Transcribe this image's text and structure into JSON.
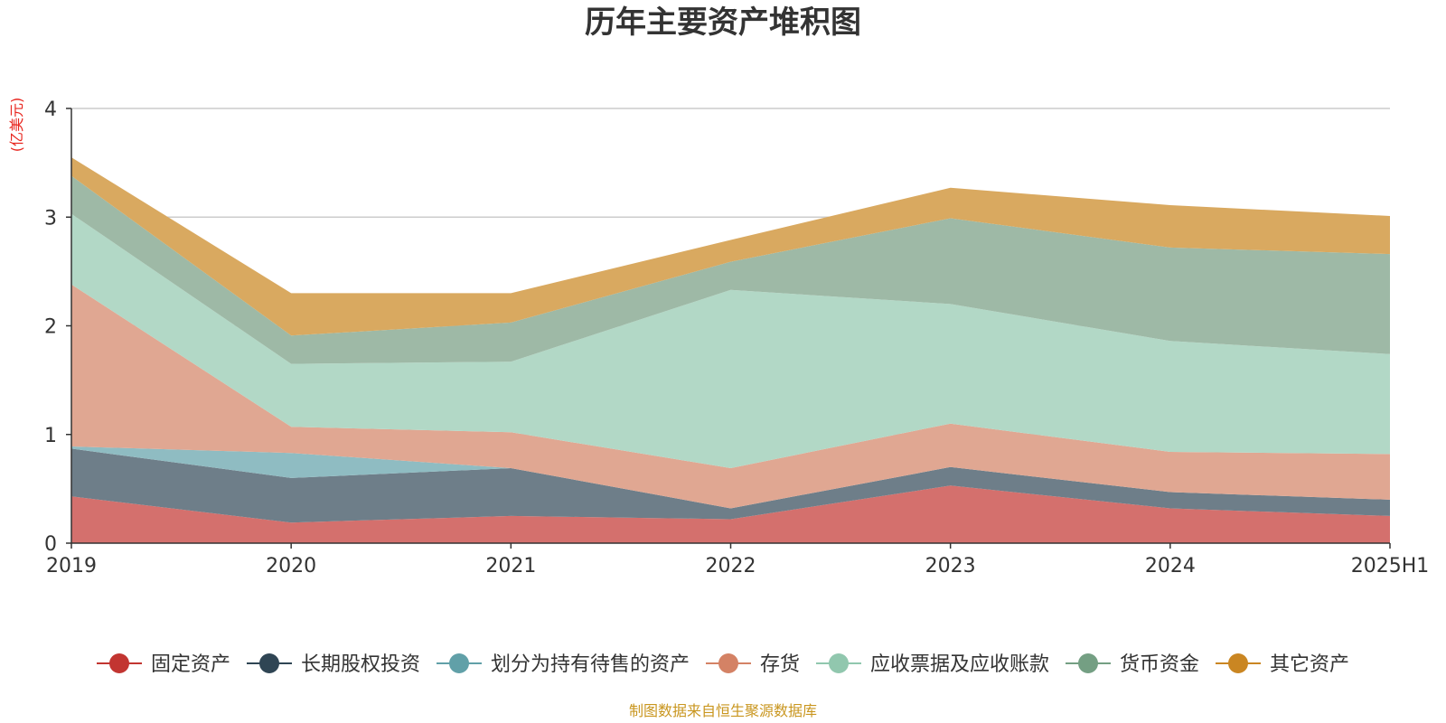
{
  "chart_data": {
    "type": "area",
    "stacked": true,
    "title": "历年主要资产堆积图",
    "ylabel": "(亿美元)",
    "xlabel": "",
    "ylim": [
      0,
      4
    ],
    "yticks": [
      0,
      1,
      2,
      3,
      4
    ],
    "grid": true,
    "legend_position": "bottom",
    "categories": [
      "2019",
      "2020",
      "2021",
      "2022",
      "2023",
      "2024",
      "2025H1"
    ],
    "series": [
      {
        "name": "固定资产",
        "color": "#c23531",
        "area_color": "#d4706d",
        "values": [
          0.43,
          0.19,
          0.25,
          0.22,
          0.53,
          0.32,
          0.25
        ]
      },
      {
        "name": "长期股权投资",
        "color": "#2f4554",
        "area_color": "#6e7e89",
        "values": [
          0.44,
          0.41,
          0.44,
          0.1,
          0.17,
          0.15,
          0.15
        ]
      },
      {
        "name": "划分为持有待售的资产",
        "color": "#61a0a8",
        "area_color": "#8fbcc2",
        "values": [
          0.02,
          0.23,
          0.0,
          0.0,
          0.0,
          0.0,
          0.0
        ]
      },
      {
        "name": "存货",
        "color": "#d48265",
        "area_color": "#e0a792",
        "values": [
          1.49,
          0.24,
          0.33,
          0.37,
          0.4,
          0.37,
          0.42
        ]
      },
      {
        "name": "应收票据及应收账款",
        "color": "#91c7ae",
        "area_color": "#b2d8c6",
        "values": [
          0.65,
          0.58,
          0.65,
          1.64,
          1.1,
          1.02,
          0.92
        ]
      },
      {
        "name": "货币资金",
        "color": "#749f83",
        "area_color": "#9eb9a6",
        "values": [
          0.35,
          0.26,
          0.36,
          0.26,
          0.79,
          0.86,
          0.92
        ]
      },
      {
        "name": "其它资产",
        "color": "#ca8622",
        "area_color": "#d9a960",
        "values": [
          0.17,
          0.39,
          0.27,
          0.2,
          0.28,
          0.39,
          0.35
        ]
      }
    ],
    "source": "制图数据来自恒生聚源数据库"
  }
}
